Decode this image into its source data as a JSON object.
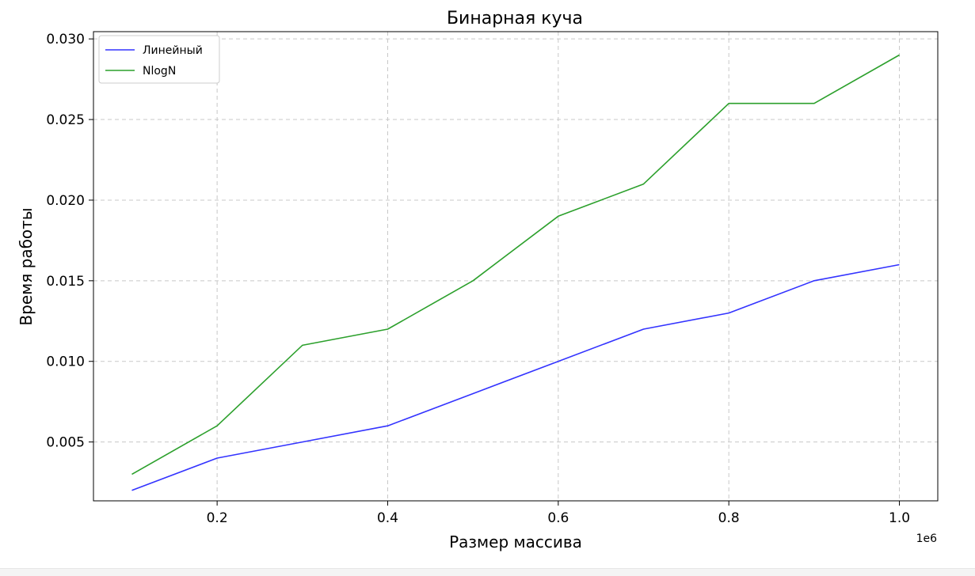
{
  "chart_data": {
    "type": "line",
    "title": "Бинарная куча",
    "xlabel": "Размер массива",
    "ylabel": "Время работы",
    "x_multiplier_label": "1e6",
    "x": [
      100000,
      200000,
      300000,
      400000,
      500000,
      600000,
      700000,
      800000,
      900000,
      1000000
    ],
    "x_ticks": [
      200000,
      400000,
      600000,
      800000,
      1000000
    ],
    "x_tick_labels": [
      "0.2",
      "0.4",
      "0.6",
      "0.8",
      "1.0"
    ],
    "y_ticks": [
      0.005,
      0.01,
      0.015,
      0.02,
      0.025,
      0.03
    ],
    "y_tick_labels": [
      "0.005",
      "0.010",
      "0.015",
      "0.020",
      "0.025",
      "0.030"
    ],
    "xlim": [
      55000,
      1045000
    ],
    "ylim": [
      0.00135,
      0.03045
    ],
    "grid": true,
    "grid_style": "dashed",
    "legend_position": "top-left",
    "series": [
      {
        "name": "Линейный",
        "color": "#3333ff",
        "values": [
          0.002,
          0.004,
          0.005,
          0.006,
          0.008,
          0.01,
          0.012,
          0.013,
          0.015,
          0.016
        ]
      },
      {
        "name": "NlogN",
        "color": "#2ca02c",
        "values": [
          0.003,
          0.006,
          0.011,
          0.012,
          0.015,
          0.019,
          0.021,
          0.026,
          0.026,
          0.029
        ]
      }
    ]
  }
}
